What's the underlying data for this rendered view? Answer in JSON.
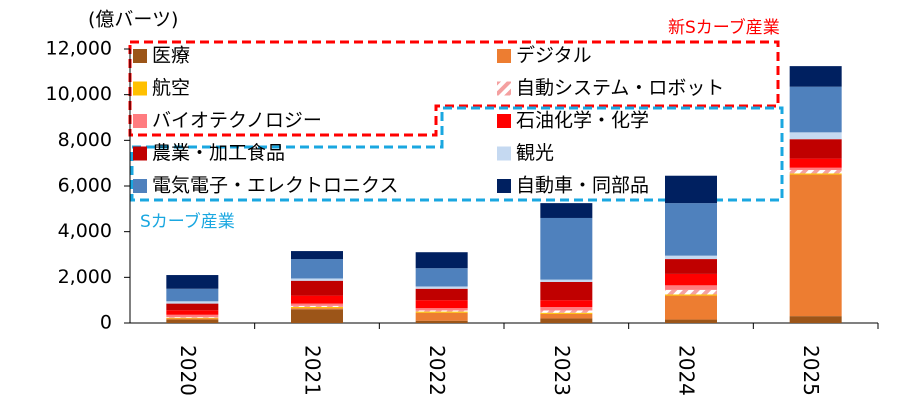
{
  "chart_data": {
    "type": "stacked_bar",
    "y_unit_label": "(億バーツ)",
    "annotations": [
      "新Sカーブ産業",
      "Sカーブ産業"
    ],
    "categories": [
      "2020",
      "2021",
      "2022",
      "2023",
      "2024",
      "2025"
    ],
    "series": [
      {
        "name": "医療",
        "color": "#9c5518",
        "values": [
          150,
          600,
          100,
          200,
          150,
          300
        ]
      },
      {
        "name": "デジタル",
        "color": "#ed7d31",
        "values": [
          50,
          50,
          350,
          200,
          1050,
          6200
        ]
      },
      {
        "name": "航空",
        "color": "#ffc000",
        "values": [
          30,
          50,
          50,
          50,
          50,
          50
        ]
      },
      {
        "name": "自動システム・ロボット",
        "color": "#f4a0a0",
        "hatch": true,
        "values": [
          30,
          50,
          50,
          100,
          200,
          150
        ]
      },
      {
        "name": "バイオテクノロジー",
        "color": "#ff7c80",
        "values": [
          100,
          100,
          100,
          150,
          200,
          100
        ]
      },
      {
        "name": "石油化学・化学",
        "color": "#ff0000",
        "values": [
          200,
          350,
          350,
          300,
          500,
          400
        ]
      },
      {
        "name": "農業・加工食品",
        "color": "#c00000",
        "values": [
          290,
          650,
          500,
          800,
          650,
          850
        ]
      },
      {
        "name": "観光",
        "color": "#c5d9f1",
        "values": [
          100,
          100,
          100,
          100,
          150,
          300
        ]
      },
      {
        "name": "電気電子・エレクトロニクス",
        "color": "#4f81bd",
        "values": [
          550,
          850,
          800,
          2700,
          2300,
          2000
        ]
      },
      {
        "name": "自動車・同部品",
        "color": "#002060",
        "values": [
          600,
          350,
          700,
          650,
          1200,
          900
        ]
      }
    ],
    "ylim": [
      0,
      12000
    ],
    "yticks": [
      0,
      {
        "value": 2000,
        "label": "2,000"
      },
      {
        "value": 4000,
        "label": "4,000"
      },
      {
        "value": 6000,
        "label": "6,000"
      },
      {
        "value": 8000,
        "label": "8,000"
      },
      {
        "value": 10000,
        "label": "10,000"
      },
      {
        "value": 12000,
        "label": "12,000"
      }
    ]
  }
}
